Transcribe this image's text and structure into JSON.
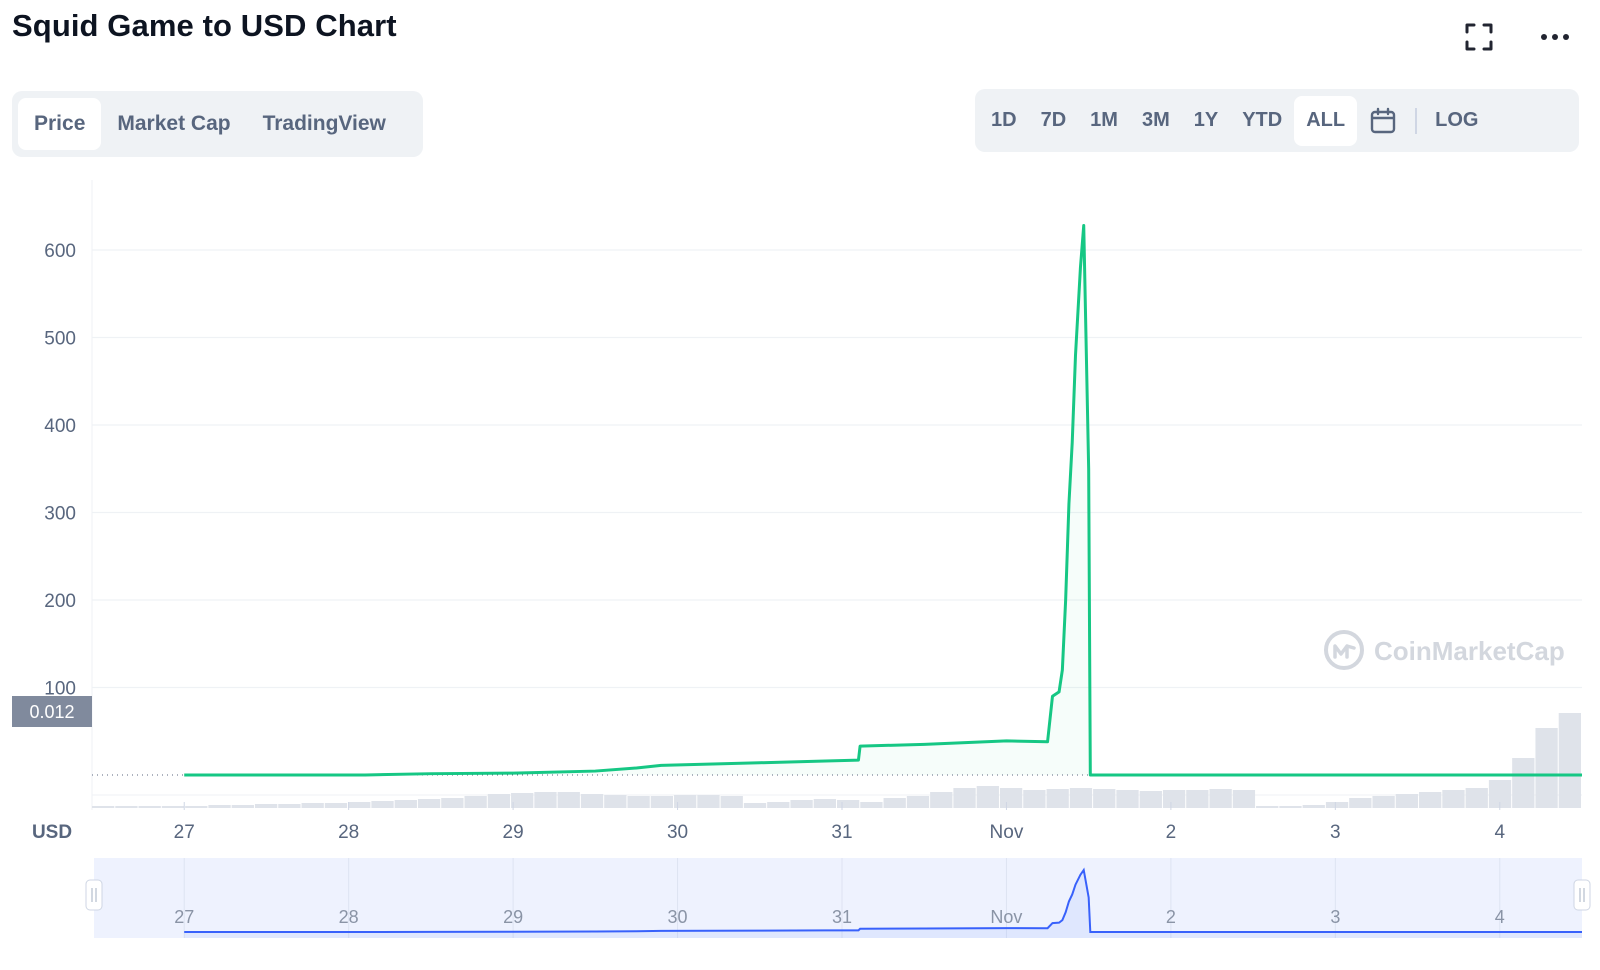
{
  "header": {
    "title": "Squid Game to USD Chart",
    "expand_icon": "expand-icon",
    "more_icon": "more-dots-icon"
  },
  "view_tabs": [
    {
      "label": "Price",
      "active": true
    },
    {
      "label": "Market Cap",
      "active": false
    },
    {
      "label": "TradingView",
      "active": false
    }
  ],
  "range_tabs": [
    {
      "label": "1D",
      "active": false
    },
    {
      "label": "7D",
      "active": false
    },
    {
      "label": "1M",
      "active": false
    },
    {
      "label": "3M",
      "active": false
    },
    {
      "label": "1Y",
      "active": false
    },
    {
      "label": "YTD",
      "active": false
    },
    {
      "label": "ALL",
      "active": true
    }
  ],
  "calendar_icon": "calendar-icon",
  "log_label": "LOG",
  "watermark": "CoinMarketCap",
  "colors": {
    "line": "#16c784",
    "grid": "#eff2f5",
    "badge": "#808a9d",
    "navigator_line": "#3861fb",
    "navigator_bg": "#eef2fe"
  },
  "chart_data": {
    "type": "line",
    "title": "Squid Game to USD Chart",
    "ylabel": "USD",
    "ylim": [
      -40,
      680
    ],
    "yticks": [
      100,
      200,
      300,
      400,
      500,
      600
    ],
    "current_price_label": "0.012",
    "x_ticks": [
      "27",
      "28",
      "29",
      "30",
      "31",
      "Nov",
      "2",
      "3",
      "4"
    ],
    "grid": true,
    "series": [
      {
        "x": [
          0,
          1.1,
          1.5,
          2.0,
          2.5,
          2.75,
          2.9,
          3.5,
          3.9,
          4.1,
          4.11,
          4.5,
          5.0,
          5.25,
          5.28,
          5.32,
          5.34,
          5.36,
          5.38,
          5.4,
          5.42,
          5.45,
          5.47,
          5.5,
          5.51,
          5.54,
          5.56,
          5.6,
          6.0,
          7.0,
          8.0,
          8.5
        ],
        "y": [
          0.012,
          0.012,
          1.5,
          2.2,
          4.5,
          8,
          11,
          14,
          16,
          17,
          33,
          35,
          39,
          38,
          90,
          95,
          120,
          200,
          310,
          380,
          480,
          580,
          628,
          350,
          0.012,
          0.012,
          0.012,
          0.012,
          0.012,
          0.012,
          0.012,
          0.012
        ]
      }
    ],
    "volume": [
      2,
      2,
      2,
      2,
      2,
      3,
      3,
      4,
      4,
      5,
      5,
      6,
      7,
      8,
      9,
      10,
      12,
      14,
      15,
      16,
      16,
      14,
      13,
      12,
      12,
      13,
      13,
      12,
      5,
      6,
      8,
      9,
      8,
      6,
      10,
      12,
      16,
      20,
      22,
      20,
      18,
      19,
      20,
      19,
      18,
      17,
      18,
      18,
      19,
      18,
      2,
      2,
      3,
      6,
      10,
      12,
      14,
      16,
      18,
      20,
      28,
      50,
      80,
      95
    ]
  }
}
